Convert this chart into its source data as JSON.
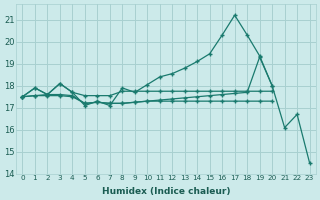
{
  "xlabel": "Humidex (Indice chaleur)",
  "bg_color": "#cceaea",
  "grid_color": "#a8d0d0",
  "line_color": "#1a7a6e",
  "xlim": [
    -0.5,
    23.5
  ],
  "ylim": [
    14,
    21.7
  ],
  "yticks": [
    14,
    15,
    16,
    17,
    18,
    19,
    20,
    21
  ],
  "xticks": [
    0,
    1,
    2,
    3,
    4,
    5,
    6,
    7,
    8,
    9,
    10,
    11,
    12,
    13,
    14,
    15,
    16,
    17,
    18,
    19,
    20,
    21,
    22,
    23
  ],
  "series": [
    {
      "x": [
        0,
        1,
        2,
        3,
        4,
        5,
        6,
        7,
        8,
        9,
        10,
        11,
        12,
        13,
        14,
        15,
        16,
        17,
        18,
        19,
        20
      ],
      "y": [
        17.5,
        17.9,
        17.6,
        18.1,
        17.7,
        17.1,
        17.3,
        17.1,
        17.9,
        17.7,
        18.05,
        18.4,
        18.55,
        18.8,
        19.1,
        19.45,
        20.3,
        21.2,
        20.3,
        19.35,
        18.0
      ]
    },
    {
      "x": [
        0,
        1,
        2,
        3,
        4,
        5,
        6,
        7,
        8,
        9,
        10,
        11,
        12,
        13,
        14,
        15,
        16,
        17,
        18,
        19,
        20
      ],
      "y": [
        17.5,
        17.9,
        17.6,
        18.1,
        17.7,
        17.55,
        17.55,
        17.55,
        17.75,
        17.75,
        17.75,
        17.75,
        17.75,
        17.75,
        17.75,
        17.75,
        17.75,
        17.75,
        17.75,
        17.75,
        17.75
      ]
    },
    {
      "x": [
        0,
        1,
        2,
        3,
        4,
        5,
        6,
        7,
        8,
        9,
        10,
        11,
        12,
        13,
        14,
        15,
        16,
        17,
        18,
        19,
        20,
        21,
        22,
        23
      ],
      "y": [
        17.5,
        17.55,
        17.6,
        17.6,
        17.55,
        17.2,
        17.25,
        17.2,
        17.2,
        17.25,
        17.3,
        17.35,
        17.4,
        17.45,
        17.5,
        17.55,
        17.6,
        17.65,
        17.7,
        19.3,
        18.0,
        16.1,
        16.7,
        14.5
      ]
    },
    {
      "x": [
        0,
        1,
        2,
        3,
        4,
        5,
        6,
        7,
        8,
        9,
        10,
        11,
        12,
        13,
        14,
        15,
        16,
        17,
        18,
        19,
        20
      ],
      "y": [
        17.5,
        17.55,
        17.55,
        17.55,
        17.5,
        17.2,
        17.25,
        17.2,
        17.2,
        17.25,
        17.3,
        17.3,
        17.3,
        17.3,
        17.3,
        17.3,
        17.3,
        17.3,
        17.3,
        17.3,
        17.3
      ]
    }
  ]
}
